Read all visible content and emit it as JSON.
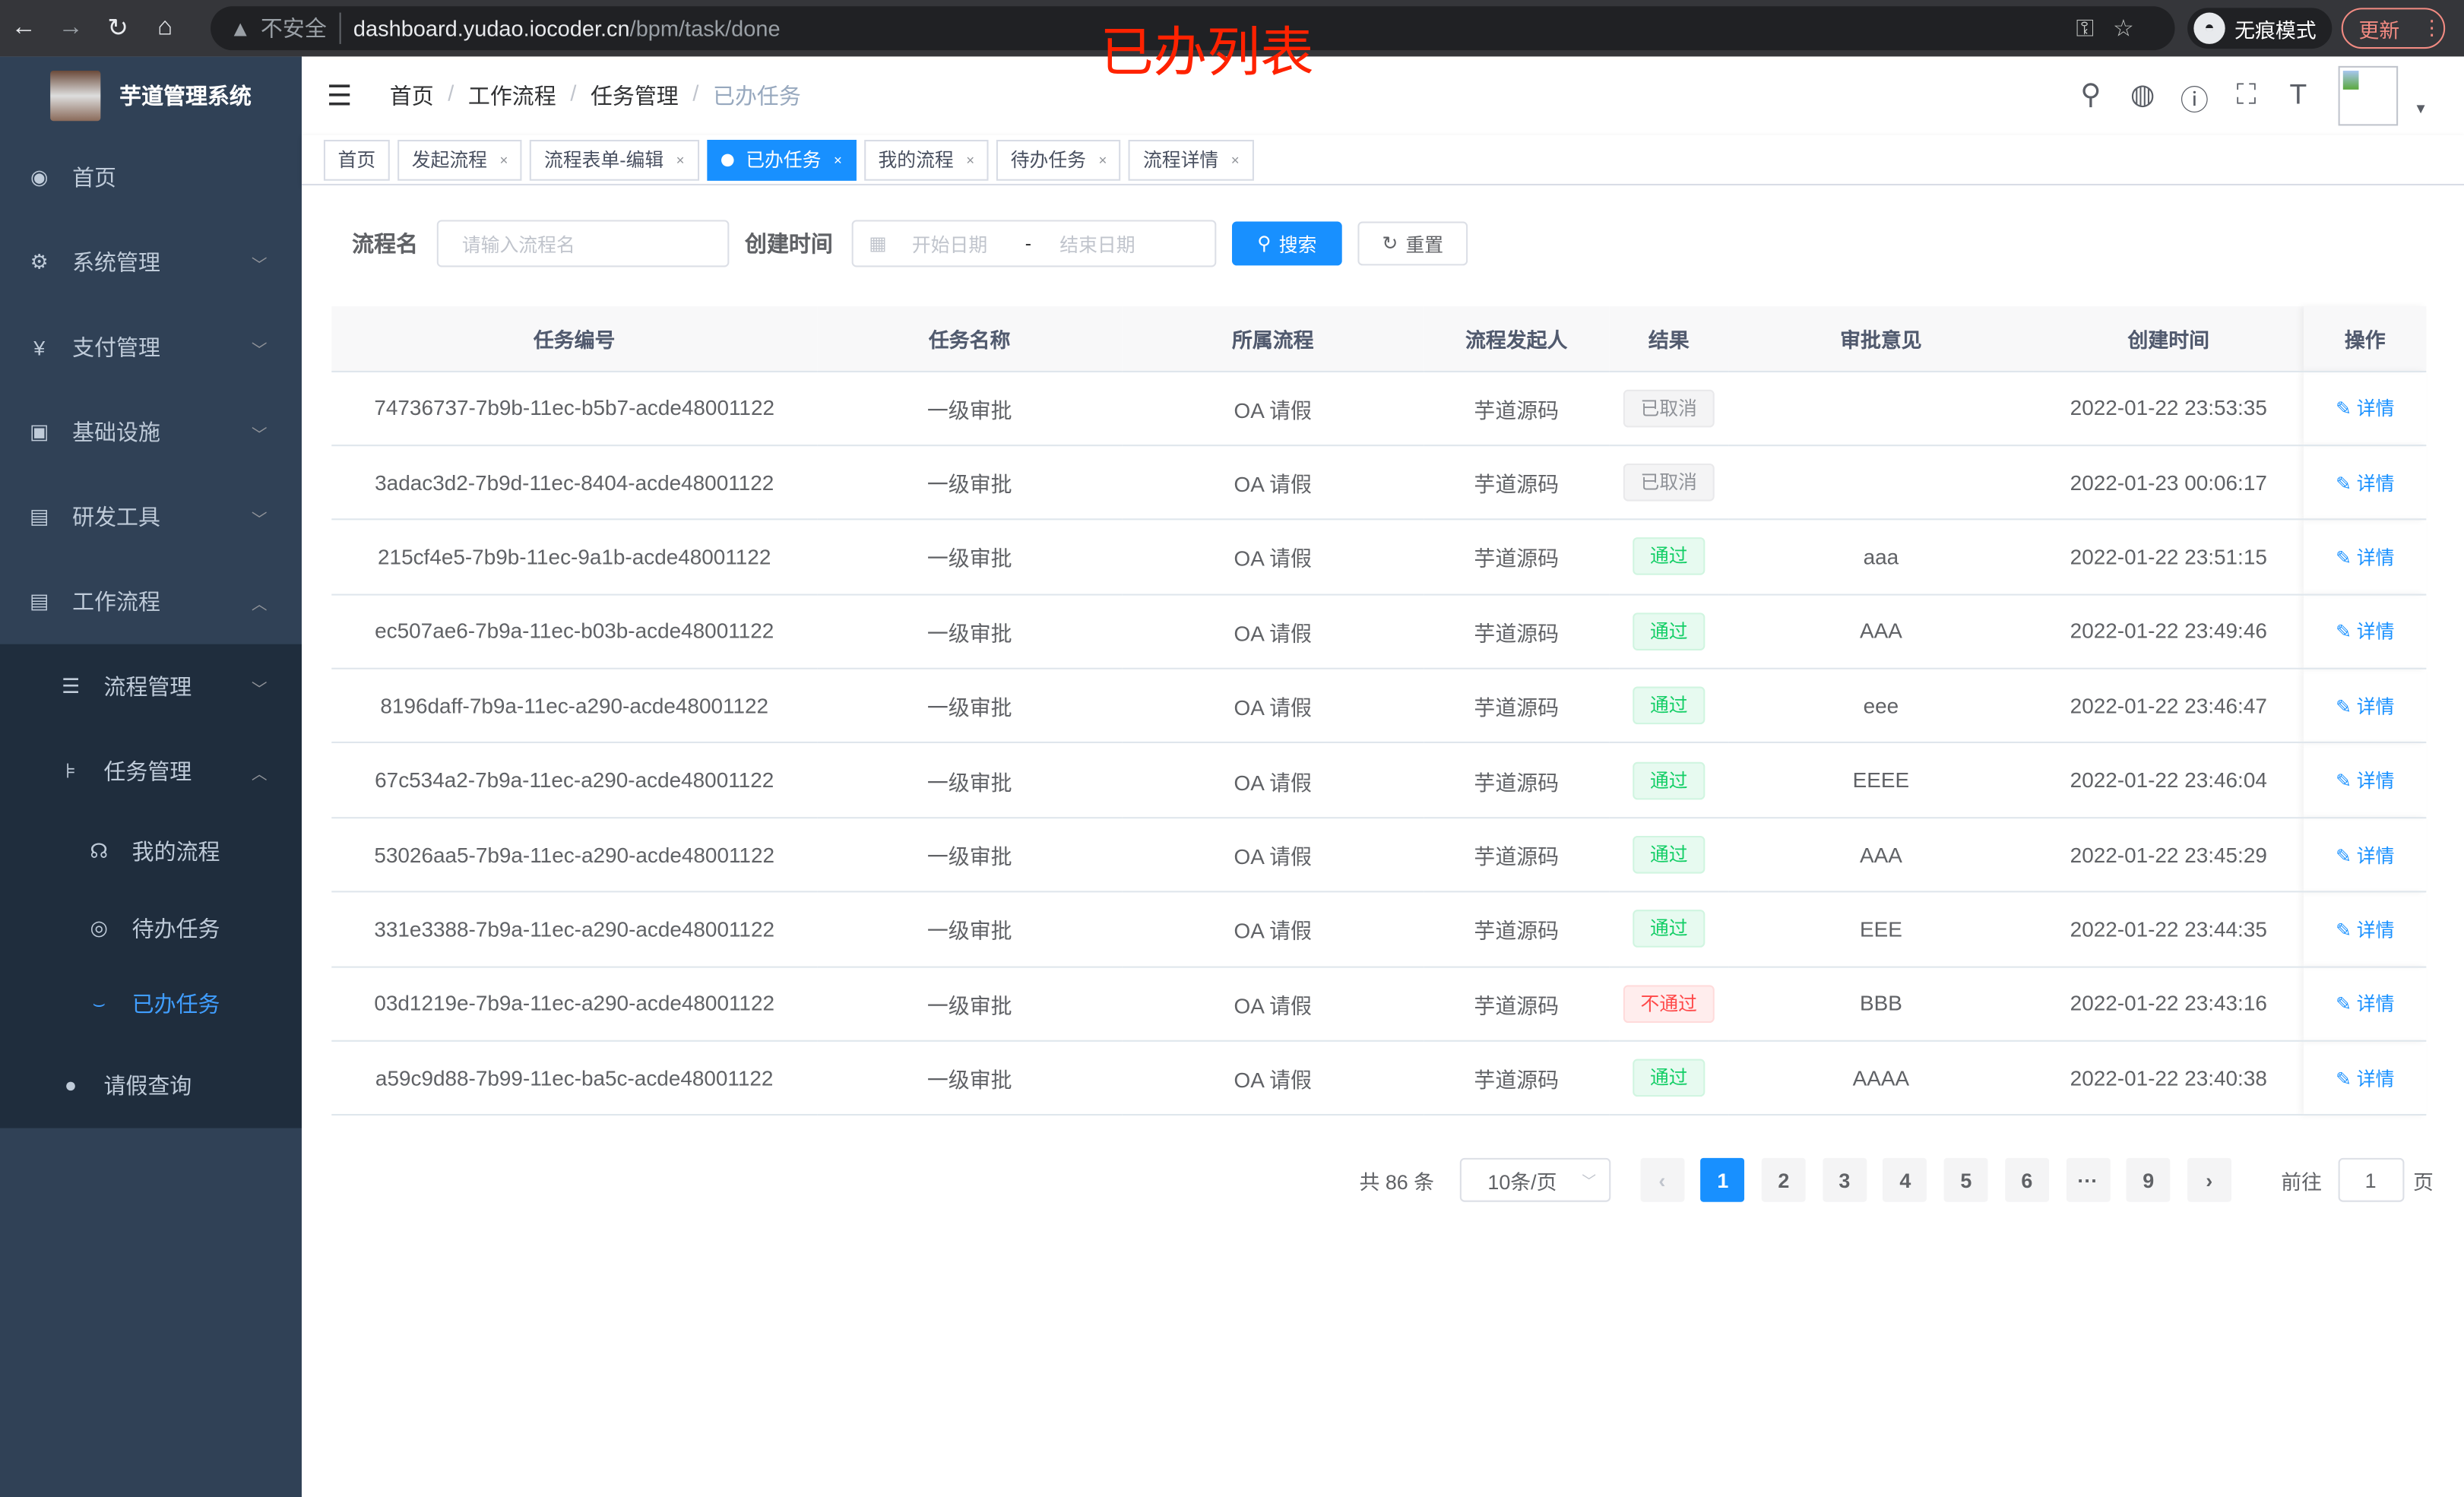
{
  "browser": {
    "insecure_label": "不安全",
    "url_host": "dashboard.yudao.iocoder.cn",
    "url_path": "/bpm/task/done",
    "incognito_label": "无痕模式",
    "update_label": "更新"
  },
  "overlay_title": "已办列表",
  "sidebar": {
    "app_title": "芋道管理系统",
    "items": [
      {
        "label": "首页",
        "icon": "dashboard-icon"
      },
      {
        "label": "系统管理",
        "icon": "gear-icon"
      },
      {
        "label": "支付管理",
        "icon": "yen-icon"
      },
      {
        "label": "基础设施",
        "icon": "monitor-icon"
      },
      {
        "label": "研发工具",
        "icon": "toolbox-icon"
      },
      {
        "label": "工作流程",
        "icon": "toolbox-icon"
      }
    ],
    "workflow_children": [
      {
        "label": "流程管理",
        "icon": "list-icon"
      },
      {
        "label": "任务管理",
        "icon": "tree-icon"
      }
    ],
    "task_children": [
      {
        "label": "我的流程",
        "icon": "headset-icon"
      },
      {
        "label": "待办任务",
        "icon": "eye-icon"
      },
      {
        "label": "已办任务",
        "icon": "eye-closed-icon"
      }
    ],
    "leave_query": {
      "label": "请假查询",
      "icon": "user-icon"
    }
  },
  "navbar": {
    "breadcrumb": [
      "首页",
      "工作流程",
      "任务管理",
      "已办任务"
    ]
  },
  "tags": [
    {
      "label": "首页",
      "closable": false,
      "active": false
    },
    {
      "label": "发起流程",
      "closable": true,
      "active": false
    },
    {
      "label": "流程表单-编辑",
      "closable": true,
      "active": false
    },
    {
      "label": "已办任务",
      "closable": true,
      "active": true
    },
    {
      "label": "我的流程",
      "closable": true,
      "active": false
    },
    {
      "label": "待办任务",
      "closable": true,
      "active": false
    },
    {
      "label": "流程详情",
      "closable": true,
      "active": false
    }
  ],
  "search": {
    "name_label": "流程名",
    "name_placeholder": "请输入流程名",
    "time_label": "创建时间",
    "start_placeholder": "开始日期",
    "range_sep": "-",
    "end_placeholder": "结束日期",
    "search_button": "搜索",
    "reset_button": "重置"
  },
  "table": {
    "columns": [
      "任务编号",
      "任务名称",
      "所属流程",
      "流程发起人",
      "结果",
      "审批意见",
      "创建时间",
      "操作"
    ],
    "action_label": "详情",
    "rows": [
      {
        "id": "74736737-7b9b-11ec-b5b7-acde48001122",
        "name": "一级审批",
        "process": "OA 请假",
        "starter": "芋道源码",
        "result": "已取消",
        "result_type": "cancel",
        "comment": "",
        "time": "2022-01-22 23:53:35"
      },
      {
        "id": "3adac3d2-7b9d-11ec-8404-acde48001122",
        "name": "一级审批",
        "process": "OA 请假",
        "starter": "芋道源码",
        "result": "已取消",
        "result_type": "cancel",
        "comment": "",
        "time": "2022-01-23 00:06:17"
      },
      {
        "id": "215cf4e5-7b9b-11ec-9a1b-acde48001122",
        "name": "一级审批",
        "process": "OA 请假",
        "starter": "芋道源码",
        "result": "通过",
        "result_type": "pass",
        "comment": "aaa",
        "time": "2022-01-22 23:51:15"
      },
      {
        "id": "ec507ae6-7b9a-11ec-b03b-acde48001122",
        "name": "一级审批",
        "process": "OA 请假",
        "starter": "芋道源码",
        "result": "通过",
        "result_type": "pass",
        "comment": "AAA",
        "time": "2022-01-22 23:49:46"
      },
      {
        "id": "8196daff-7b9a-11ec-a290-acde48001122",
        "name": "一级审批",
        "process": "OA 请假",
        "starter": "芋道源码",
        "result": "通过",
        "result_type": "pass",
        "comment": "eee",
        "time": "2022-01-22 23:46:47"
      },
      {
        "id": "67c534a2-7b9a-11ec-a290-acde48001122",
        "name": "一级审批",
        "process": "OA 请假",
        "starter": "芋道源码",
        "result": "通过",
        "result_type": "pass",
        "comment": "EEEE",
        "time": "2022-01-22 23:46:04"
      },
      {
        "id": "53026aa5-7b9a-11ec-a290-acde48001122",
        "name": "一级审批",
        "process": "OA 请假",
        "starter": "芋道源码",
        "result": "通过",
        "result_type": "pass",
        "comment": "AAA",
        "time": "2022-01-22 23:45:29"
      },
      {
        "id": "331e3388-7b9a-11ec-a290-acde48001122",
        "name": "一级审批",
        "process": "OA 请假",
        "starter": "芋道源码",
        "result": "通过",
        "result_type": "pass",
        "comment": "EEE",
        "time": "2022-01-22 23:44:35"
      },
      {
        "id": "03d1219e-7b9a-11ec-a290-acde48001122",
        "name": "一级审批",
        "process": "OA 请假",
        "starter": "芋道源码",
        "result": "不通过",
        "result_type": "reject",
        "comment": "BBB",
        "time": "2022-01-22 23:43:16"
      },
      {
        "id": "a59c9d88-7b99-11ec-ba5c-acde48001122",
        "name": "一级审批",
        "process": "OA 请假",
        "starter": "芋道源码",
        "result": "通过",
        "result_type": "pass",
        "comment": "AAAA",
        "time": "2022-01-22 23:40:38"
      }
    ]
  },
  "pagination": {
    "total_text": "共 86 条",
    "page_size": "10条/页",
    "pages": [
      "1",
      "2",
      "3",
      "4",
      "5",
      "6",
      "···",
      "9"
    ],
    "current_page": "1",
    "goto_label": "前往",
    "goto_value": "1",
    "page_suffix": "页"
  },
  "colors": {
    "sidebar_bg": "#304156",
    "accent": "#1890ff",
    "pass": "#13ce66",
    "reject": "#ff4949",
    "overlay_title": "#ff2200"
  }
}
